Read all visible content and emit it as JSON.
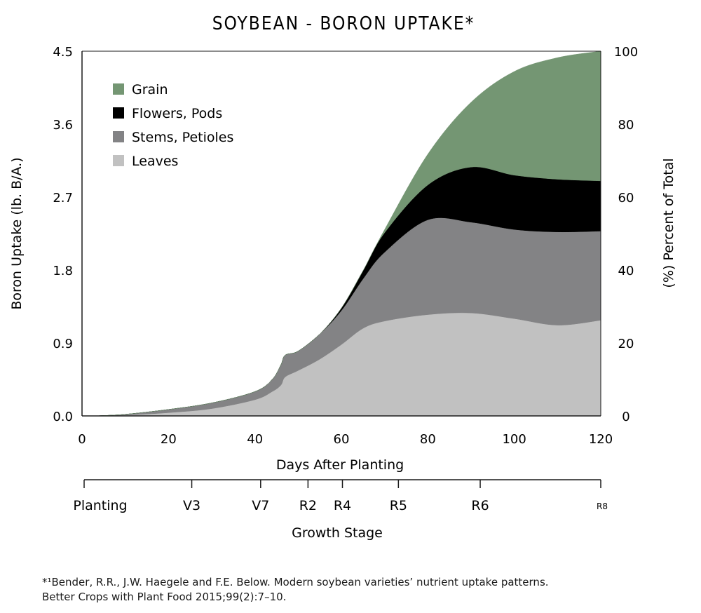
{
  "chart_data": {
    "type": "area",
    "title": "SOYBEAN - BORON UPTAKE*",
    "xlabel": "Days After Planting",
    "ylabel": "Boron Uptake (lb. B/A.)",
    "y2label": "(%) Percent of Total",
    "xlim": [
      0,
      120
    ],
    "ylim": [
      0,
      4.5
    ],
    "y2lim": [
      0,
      100
    ],
    "x_ticks": [
      "0",
      "20",
      "40",
      "60",
      "80",
      "100",
      "120"
    ],
    "y_ticks": [
      "0.0",
      "0.9",
      "1.8",
      "2.7",
      "3.6",
      "4.5"
    ],
    "y2_ticks": [
      "0",
      "20",
      "40",
      "60",
      "80",
      "100"
    ],
    "grid": false,
    "legend_position": "top-left",
    "x": [
      3,
      10,
      20,
      30,
      40,
      44,
      46,
      47,
      50,
      55,
      60,
      65,
      70,
      80,
      90,
      100,
      110,
      120
    ],
    "series": [
      {
        "name": "Leaves",
        "color": "#c1c1c1",
        "values": [
          0,
          0.01,
          0.04,
          0.09,
          0.2,
          0.3,
          0.38,
          0.48,
          0.56,
          0.7,
          0.88,
          1.08,
          1.17,
          1.25,
          1.27,
          1.2,
          1.12,
          1.18
        ]
      },
      {
        "name": "Stems, Petioles",
        "color": "#838385",
        "values": [
          0,
          0.01,
          0.04,
          0.07,
          0.1,
          0.15,
          0.25,
          0.27,
          0.24,
          0.31,
          0.42,
          0.61,
          0.85,
          1.17,
          1.12,
          1.1,
          1.15,
          1.1
        ]
      },
      {
        "name": "Flowers, Pods",
        "color": "#000000",
        "values": [
          0,
          0,
          0,
          0,
          0,
          0,
          0,
          0,
          0,
          0,
          0.03,
          0.1,
          0.24,
          0.43,
          0.68,
          0.67,
          0.65,
          0.62
        ]
      },
      {
        "name": "Grain",
        "color": "#749673",
        "values": [
          0,
          0,
          0,
          0,
          0,
          0,
          0,
          0,
          0,
          0,
          0,
          0,
          0.04,
          0.38,
          0.8,
          1.28,
          1.5,
          1.6
        ]
      }
    ],
    "growth_stage": {
      "title": "Growth Stage",
      "stages": [
        {
          "label": "Planting",
          "day": 0
        },
        {
          "label": "V3",
          "day": 25
        },
        {
          "label": "V7",
          "day": 41
        },
        {
          "label": "R2",
          "day": 52
        },
        {
          "label": "R4",
          "day": 60
        },
        {
          "label": "R5",
          "day": 73
        },
        {
          "label": "R6",
          "day": 92
        },
        {
          "label": "R8",
          "day": 120
        }
      ]
    }
  },
  "footnote": {
    "line1": "*¹Bender, R.R., J.W. Haegele and F.E. Below. Modern soybean varieties’ nutrient uptake patterns.",
    "line2": "Better Crops with Plant Food 2015;99(2):7–10."
  }
}
